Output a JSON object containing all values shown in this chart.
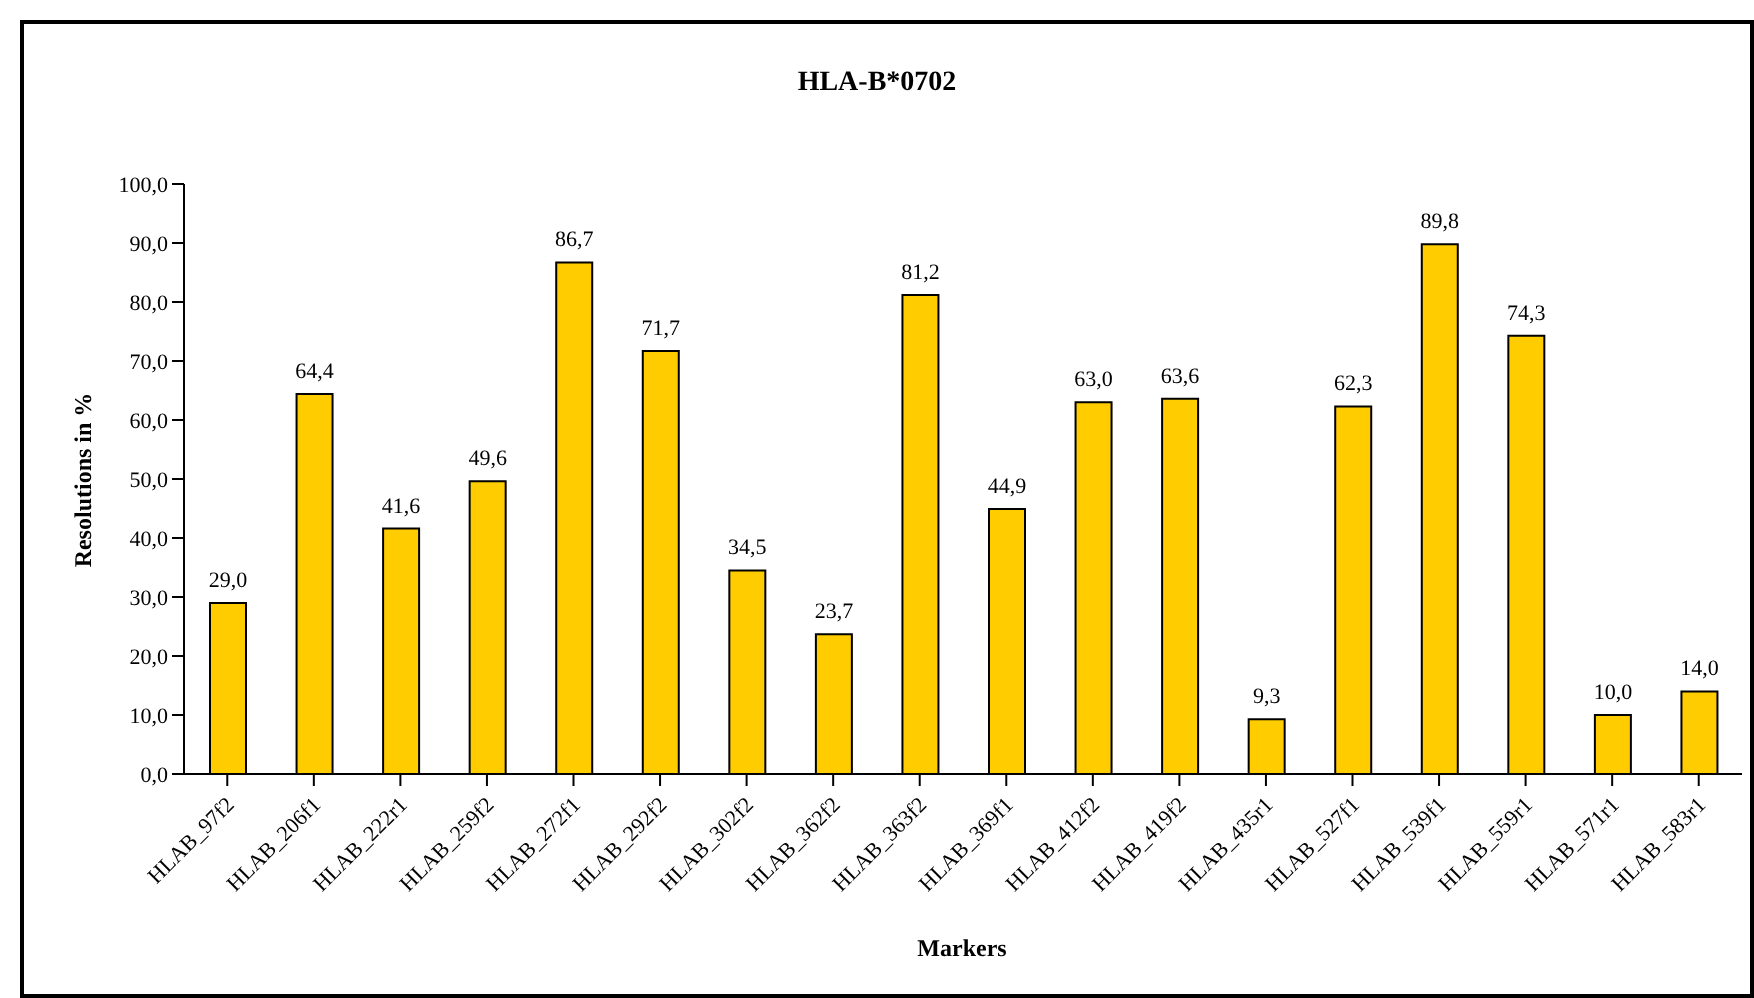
{
  "chart_data": {
    "type": "bar",
    "title": "HLA-B*0702",
    "xlabel": "Markers",
    "ylabel": "Resolutions in %",
    "categories": [
      "HLAB_97f2",
      "HLAB_206f1",
      "HLAB_222r1",
      "HLAB_259f2",
      "HLAB_272f1",
      "HLAB_292f2",
      "HLAB_302f2",
      "HLAB_362f2",
      "HLAB_363f2",
      "HLAB_369f1",
      "HLAB_412f2",
      "HLAB_419f2",
      "HLAB_435r1",
      "HLAB_527f1",
      "HLAB_539f1",
      "HLAB_559r1",
      "HLAB_571r1",
      "HLAB_583r1"
    ],
    "values": [
      29.0,
      64.4,
      41.6,
      49.6,
      86.7,
      71.7,
      34.5,
      23.7,
      81.2,
      44.9,
      63.0,
      63.6,
      9.3,
      62.3,
      89.8,
      74.3,
      10.0,
      14.0
    ],
    "value_labels": [
      "29,0",
      "64,4",
      "41,6",
      "49,6",
      "86,7",
      "71,7",
      "34,5",
      "23,7",
      "81,2",
      "44,9",
      "63,0",
      "63,6",
      "9,3",
      "62,3",
      "89,8",
      "74,3",
      "10,0",
      "14,0"
    ],
    "color": "#ffcc00",
    "ylim": [
      0,
      100
    ],
    "yticks": [
      {
        "value": 0,
        "label": "0,0"
      },
      {
        "value": 10,
        "label": "10,0"
      },
      {
        "value": 20,
        "label": "20,0"
      },
      {
        "value": 30,
        "label": "30,0"
      },
      {
        "value": 40,
        "label": "40,0"
      },
      {
        "value": 50,
        "label": "50,0"
      },
      {
        "value": 60,
        "label": "60,0"
      },
      {
        "value": 70,
        "label": "70,0"
      },
      {
        "value": 80,
        "label": "80,0"
      },
      {
        "value": 90,
        "label": "90,0"
      },
      {
        "value": 100,
        "label": "100,0"
      }
    ],
    "grid": false,
    "legend": false
  }
}
